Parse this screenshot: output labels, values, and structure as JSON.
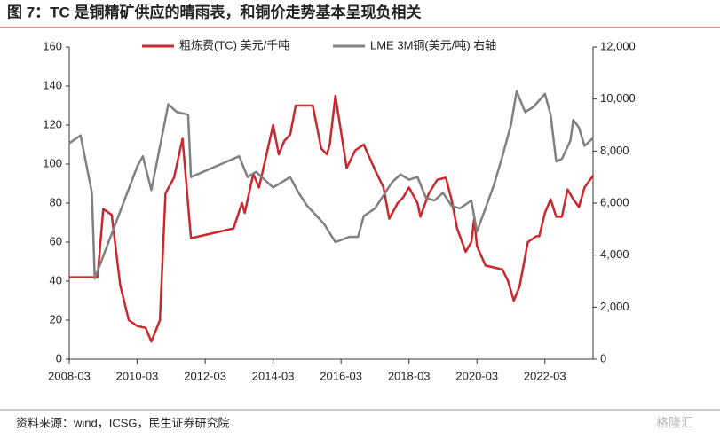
{
  "title": "图 7：TC 是铜精矿供应的晴雨表，和铜价走势基本呈现负相关",
  "source": "资料来源：wind，ICSG，民生证券研究院",
  "watermark": "格隆汇",
  "chart_data": {
    "type": "line",
    "xlim": [
      "2008-03",
      "2023-08"
    ],
    "xticks": [
      "2008-03",
      "2010-03",
      "2012-03",
      "2014-03",
      "2016-03",
      "2018-03",
      "2020-03",
      "2022-03"
    ],
    "ylim": [
      0,
      160
    ],
    "yticks": [
      0,
      20,
      40,
      60,
      80,
      100,
      120,
      140,
      160
    ],
    "y2lim": [
      0,
      12000
    ],
    "y2ticks": [
      0,
      {
        "value": 2000,
        "label": "2,000"
      },
      {
        "value": 4000,
        "label": "4,000"
      },
      {
        "value": 6000,
        "label": "6,000"
      },
      {
        "value": 8000,
        "label": "8,000"
      },
      {
        "value": 10000,
        "label": "10,000"
      },
      {
        "value": 12000,
        "label": "12,000"
      }
    ],
    "legend": "top",
    "series": [
      {
        "name": "粗炼费(TC) 美元/千吨",
        "color": "#c8282e",
        "x": [
          "2008-03",
          "2009-01",
          "2009-03",
          "2009-06",
          "2009-09",
          "2009-12",
          "2010-03",
          "2010-06",
          "2010-08",
          "2010-11",
          "2011-01",
          "2011-04",
          "2011-07",
          "2011-10",
          "2013-01",
          "2013-04",
          "2013-05",
          "2013-08",
          "2013-10",
          "2014-01",
          "2014-03",
          "2014-05",
          "2014-07",
          "2014-09",
          "2014-11",
          "2015-05",
          "2015-08",
          "2015-10",
          "2015-11",
          "2016-01",
          "2016-05",
          "2016-08",
          "2016-11",
          "2017-03",
          "2017-06",
          "2017-08",
          "2017-11",
          "2018-01",
          "2018-03",
          "2018-06",
          "2018-07",
          "2018-10",
          "2019-01",
          "2019-04",
          "2019-06",
          "2019-08",
          "2019-11",
          "2020-01",
          "2020-02",
          "2020-03",
          "2020-06",
          "2020-09",
          "2020-12",
          "2021-02",
          "2021-04",
          "2021-06",
          "2021-09",
          "2021-12",
          "2022-01",
          "2022-03",
          "2022-05",
          "2022-07",
          "2022-09",
          "2022-11",
          "2023-01",
          "2023-03",
          "2023-05",
          "2023-08"
        ],
        "values": [
          42,
          42,
          77,
          74,
          38,
          20,
          17,
          16,
          9,
          20,
          85,
          93,
          113,
          62,
          67,
          80,
          75,
          95,
          88,
          107,
          120,
          105,
          112,
          115,
          130,
          130,
          108,
          105,
          110,
          135,
          98,
          107,
          110,
          97,
          88,
          72,
          80,
          83,
          88,
          80,
          73,
          85,
          92,
          93,
          82,
          67,
          55,
          60,
          72,
          58,
          48,
          47,
          46,
          40,
          30,
          37,
          60,
          63,
          63,
          75,
          82,
          73,
          73,
          87,
          82,
          78,
          88,
          94
        ]
      },
      {
        "name": "LME 3M铜(美元/吨) 右轴",
        "color": "#808080",
        "axis": "y2",
        "x": [
          "2008-03",
          "2008-07",
          "2008-11",
          "2008-12",
          "2010-03",
          "2010-05",
          "2010-08",
          "2011-02",
          "2011-05",
          "2011-09",
          "2011-10",
          "2013-03",
          "2013-06",
          "2013-09",
          "2014-03",
          "2014-09",
          "2014-12",
          "2015-03",
          "2015-09",
          "2016-01",
          "2016-06",
          "2016-09",
          "2016-11",
          "2017-03",
          "2017-09",
          "2017-12",
          "2018-03",
          "2018-06",
          "2018-09",
          "2018-12",
          "2019-03",
          "2019-06",
          "2019-09",
          "2020-01",
          "2020-03",
          "2020-06",
          "2020-09",
          "2020-12",
          "2021-03",
          "2021-05",
          "2021-08",
          "2021-11",
          "2022-03",
          "2022-05",
          "2022-07",
          "2022-09",
          "2022-12",
          "2023-01",
          "2023-03",
          "2023-05",
          "2023-08"
        ],
        "values": [
          8300,
          8600,
          6400,
          3100,
          7400,
          7800,
          6500,
          9800,
          9500,
          9400,
          7000,
          7800,
          7000,
          7200,
          6600,
          7000,
          6400,
          5900,
          5200,
          4500,
          4700,
          4700,
          5500,
          5800,
          6800,
          7100,
          6900,
          7000,
          6200,
          6100,
          6400,
          5900,
          5800,
          6100,
          4900,
          5800,
          6700,
          7800,
          9000,
          10300,
          9500,
          9700,
          10200,
          9400,
          7600,
          7700,
          8400,
          9200,
          8900,
          8200,
          8500
        ]
      }
    ]
  }
}
